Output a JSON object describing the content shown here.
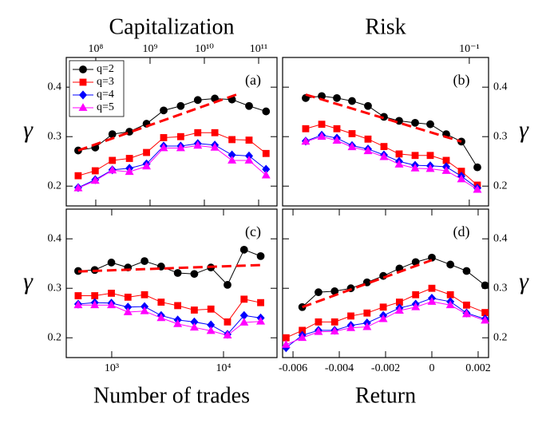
{
  "chart_data": [
    {
      "type": "line",
      "panel_label": "(a)",
      "xlabel": "Capitalization",
      "ylabel": "γ",
      "xscale": "log",
      "xaxis": "top",
      "yaxis": "left",
      "legend": "upper left",
      "xlim": [
        28600000,
        218000000000
      ],
      "xticks": [
        {
          "value": 100000000,
          "label": "10⁸"
        },
        {
          "value": 1000000000,
          "label": "10⁹"
        },
        {
          "value": 10000000000,
          "label": "10¹⁰"
        },
        {
          "value": 100000000000,
          "label": "10¹¹"
        }
      ],
      "ylim": [
        0.16,
        0.46
      ],
      "yticks": [
        0.2,
        0.3,
        0.4
      ],
      "x": [
        47400000,
        97800000,
        202000000,
        417000000,
        861000000,
        1780000000,
        3670000000,
        7570000000,
        15600000000,
        32300000000,
        66600000000,
        137000000000
      ],
      "series": [
        {
          "name": "q=2",
          "color": "#000000",
          "marker": "circle",
          "values": [
            0.272,
            0.278,
            0.305,
            0.31,
            0.326,
            0.353,
            0.362,
            0.374,
            0.377,
            0.375,
            0.362,
            0.351
          ]
        },
        {
          "name": "q=3",
          "color": "#ff0000",
          "marker": "square",
          "values": [
            0.221,
            0.231,
            0.252,
            0.256,
            0.268,
            0.298,
            0.3,
            0.308,
            0.308,
            0.294,
            0.293,
            0.266
          ]
        },
        {
          "name": "q=4",
          "color": "#0000ff",
          "marker": "diamond",
          "values": [
            0.197,
            0.213,
            0.233,
            0.236,
            0.245,
            0.281,
            0.281,
            0.286,
            0.283,
            0.263,
            0.261,
            0.234
          ]
        },
        {
          "name": "q=5",
          "color": "#ff00ff",
          "marker": "triangle",
          "values": [
            0.196,
            0.211,
            0.232,
            0.229,
            0.24,
            0.277,
            0.277,
            0.282,
            0.278,
            0.252,
            0.252,
            0.222
          ]
        }
      ],
      "fit": {
        "color": "#ff0000",
        "x": [
          47400000,
          44000000000
        ],
        "values": [
          0.272,
          0.387
        ]
      }
    },
    {
      "type": "line",
      "panel_label": "(b)",
      "xlabel": "Risk",
      "ylabel": "γ",
      "xscale": "log",
      "xaxis": "top",
      "yaxis": "right",
      "xlim": [
        0.0115,
        0.125
      ],
      "xticks": [
        {
          "value": 0.1,
          "label": "10⁻¹"
        }
      ],
      "ylim": [
        0.16,
        0.46
      ],
      "yticks": [
        0.2,
        0.3,
        0.4
      ],
      "x": [
        0.01503,
        0.0181,
        0.02157,
        0.02571,
        0.03093,
        0.03721,
        0.04436,
        0.05339,
        0.06364,
        0.07656,
        0.09128,
        0.1098
      ],
      "series": [
        {
          "color": "#000000",
          "marker": "circle",
          "values": [
            0.378,
            0.382,
            0.378,
            0.372,
            0.362,
            0.34,
            0.332,
            0.328,
            0.325,
            0.305,
            0.29,
            0.238
          ]
        },
        {
          "color": "#ff0000",
          "marker": "square",
          "values": [
            0.316,
            0.325,
            0.316,
            0.306,
            0.295,
            0.28,
            0.265,
            0.262,
            0.262,
            0.252,
            0.23,
            0.202
          ]
        },
        {
          "color": "#0000ff",
          "marker": "diamond",
          "values": [
            0.291,
            0.303,
            0.297,
            0.282,
            0.275,
            0.263,
            0.25,
            0.242,
            0.241,
            0.239,
            0.22,
            0.196
          ]
        },
        {
          "color": "#ff00ff",
          "marker": "triangle",
          "values": [
            0.29,
            0.3,
            0.292,
            0.279,
            0.271,
            0.259,
            0.244,
            0.236,
            0.235,
            0.231,
            0.214,
            0.193
          ]
        }
      ],
      "fit": {
        "color": "#ff0000",
        "x": [
          0.01503,
          0.09128
        ],
        "values": [
          0.385,
          0.29
        ]
      }
    },
    {
      "type": "line",
      "panel_label": "(c)",
      "xlabel": "Number of trades",
      "ylabel": "γ",
      "xscale": "log",
      "xaxis": "bottom",
      "yaxis": "left",
      "xlim": [
        392,
        30100
      ],
      "xticks": [
        {
          "value": 1000,
          "label": "10³"
        },
        {
          "value": 10000,
          "label": "10⁴"
        }
      ],
      "ylim": [
        0.16,
        0.46
      ],
      "yticks": [
        0.2,
        0.3,
        0.4
      ],
      "x": [
        501,
        705,
        993,
        1397,
        1966,
        2767,
        3894,
        5480,
        7713,
        10855,
        15276,
        21500
      ],
      "series": [
        {
          "color": "#000000",
          "marker": "circle",
          "values": [
            0.335,
            0.337,
            0.352,
            0.342,
            0.355,
            0.344,
            0.331,
            0.329,
            0.342,
            0.307,
            0.378,
            0.365
          ]
        },
        {
          "color": "#ff0000",
          "marker": "square",
          "values": [
            0.285,
            0.285,
            0.29,
            0.282,
            0.287,
            0.272,
            0.265,
            0.256,
            0.258,
            0.232,
            0.278,
            0.271
          ]
        },
        {
          "color": "#0000ff",
          "marker": "diamond",
          "values": [
            0.268,
            0.271,
            0.27,
            0.262,
            0.263,
            0.245,
            0.236,
            0.232,
            0.226,
            0.207,
            0.245,
            0.24
          ]
        },
        {
          "color": "#ff00ff",
          "marker": "triangle",
          "values": [
            0.266,
            0.266,
            0.266,
            0.252,
            0.254,
            0.24,
            0.228,
            0.221,
            0.214,
            0.205,
            0.231,
            0.233
          ]
        }
      ],
      "fit": {
        "color": "#ff0000",
        "x": [
          501,
          21500
        ],
        "values": [
          0.334,
          0.347
        ]
      }
    },
    {
      "type": "line",
      "panel_label": "(d)",
      "xlabel": "Return",
      "ylabel": "γ",
      "xscale": "linear",
      "xaxis": "bottom",
      "yaxis": "right",
      "xlim": [
        -0.00645,
        0.00245
      ],
      "xticks": [
        -0.006,
        -0.004,
        -0.002,
        0,
        0.002
      ],
      "ylim": [
        0.16,
        0.46
      ],
      "yticks": [
        0.2,
        0.3,
        0.4
      ],
      "x": [
        -0.0063,
        -0.0056,
        -0.0049,
        -0.0042,
        -0.0035,
        -0.0028,
        -0.0021,
        -0.0014,
        -0.0007,
        0,
        0.0008,
        0.0015,
        0.0023
      ],
      "series": [
        {
          "color": "#000000",
          "marker": "circle",
          "values": [
            null,
            0.262,
            0.292,
            0.294,
            0.3,
            0.312,
            0.325,
            0.34,
            0.353,
            0.362,
            0.348,
            0.335,
            0.306
          ]
        },
        {
          "color": "#ff0000",
          "marker": "square",
          "values": [
            0.2,
            0.215,
            0.232,
            0.232,
            0.244,
            0.25,
            0.262,
            0.272,
            0.287,
            0.3,
            0.287,
            0.266,
            0.251
          ]
        },
        {
          "color": "#0000ff",
          "marker": "diamond",
          "values": [
            0.18,
            0.205,
            0.215,
            0.215,
            0.225,
            0.23,
            0.245,
            0.26,
            0.268,
            0.28,
            0.273,
            0.25,
            0.238
          ]
        },
        {
          "color": "#ff00ff",
          "marker": "triangle",
          "values": [
            0.186,
            0.2,
            0.212,
            0.213,
            0.22,
            0.222,
            0.238,
            0.255,
            0.262,
            0.273,
            0.266,
            0.248,
            0.235
          ]
        }
      ],
      "fit": {
        "color": "#ff0000",
        "x": [
          -0.0056,
          0
        ],
        "values": [
          0.262,
          0.357
        ]
      }
    }
  ]
}
